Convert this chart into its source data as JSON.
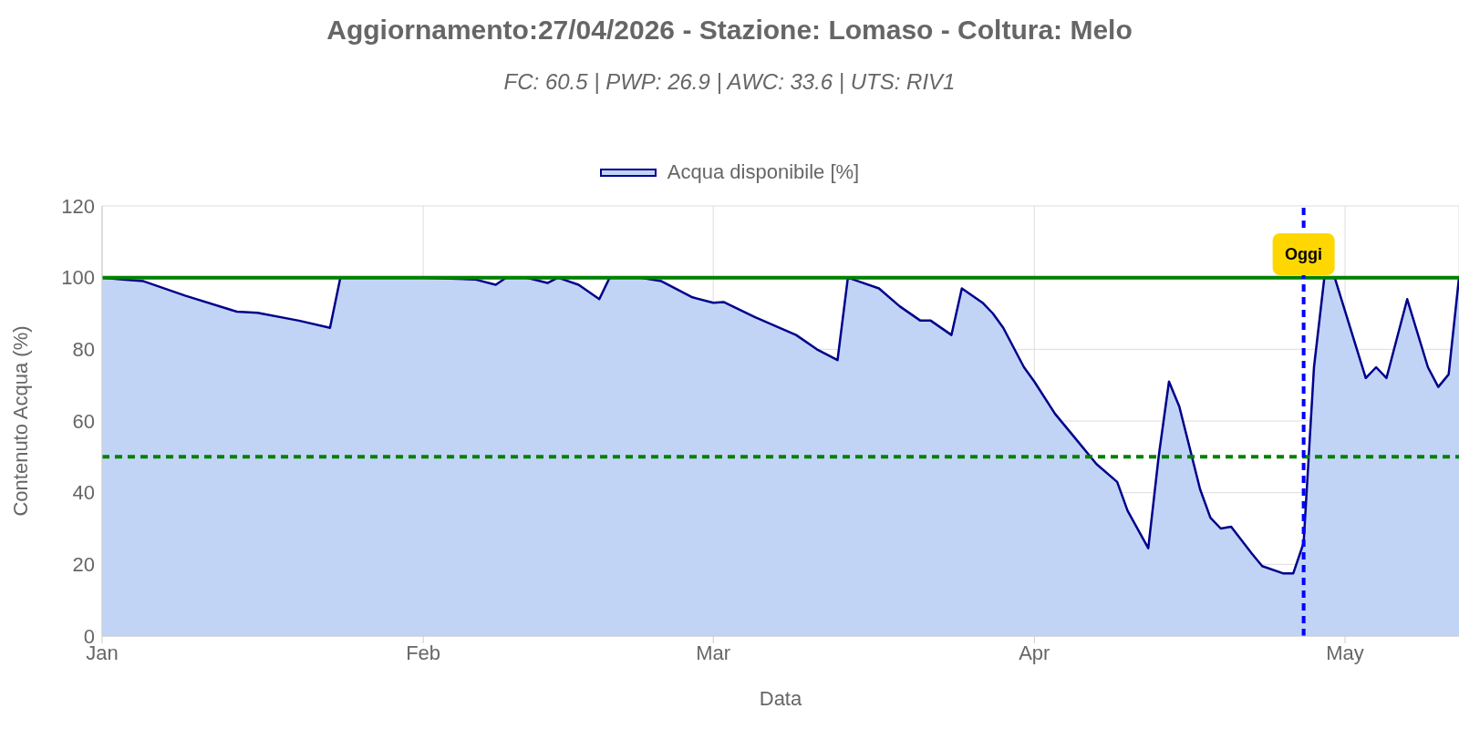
{
  "chart_data": {
    "type": "area",
    "title": "Aggiornamento:27/04/2026 - Stazione: Lomaso - Coltura: Melo",
    "subtitle": "FC: 60.5 | PWP: 26.9 | AWC: 33.6 | UTS: RIV1",
    "xlabel": "Data",
    "ylabel": "Contenuto Acqua (%)",
    "x": [
      "2026-01-01",
      "2026-01-03",
      "2026-01-05",
      "2026-01-09",
      "2026-01-14",
      "2026-01-16",
      "2026-01-20",
      "2026-01-23",
      "2026-01-24",
      "2026-02-01",
      "2026-02-06",
      "2026-02-08",
      "2026-02-09",
      "2026-02-11",
      "2026-02-13",
      "2026-02-14",
      "2026-02-16",
      "2026-02-18",
      "2026-02-19",
      "2026-02-22",
      "2026-02-24",
      "2026-02-27",
      "2026-03-01",
      "2026-03-02",
      "2026-03-05",
      "2026-03-09",
      "2026-03-11",
      "2026-03-13",
      "2026-03-14",
      "2026-03-15",
      "2026-03-17",
      "2026-03-19",
      "2026-03-21",
      "2026-03-22",
      "2026-03-24",
      "2026-03-25",
      "2026-03-27",
      "2026-03-28",
      "2026-03-29",
      "2026-03-31",
      "2026-04-01",
      "2026-04-03",
      "2026-04-05",
      "2026-04-07",
      "2026-04-09",
      "2026-04-10",
      "2026-04-12",
      "2026-04-13",
      "2026-04-14",
      "2026-04-15",
      "2026-04-17",
      "2026-04-18",
      "2026-04-19",
      "2026-04-20",
      "2026-04-22",
      "2026-04-23",
      "2026-04-25",
      "2026-04-26",
      "2026-04-27",
      "2026-04-28",
      "2026-04-29",
      "2026-04-30",
      "2026-05-03",
      "2026-05-04",
      "2026-05-05",
      "2026-05-07",
      "2026-05-09",
      "2026-05-10",
      "2026-05-11",
      "2026-05-12"
    ],
    "series": [
      {
        "name": "Acqua disponibile [%]",
        "color": "#00008b",
        "values": [
          100,
          99.5,
          99,
          95,
          90.5,
          90.2,
          88,
          86,
          100,
          100,
          99.5,
          98,
          100,
          100,
          98.5,
          100,
          98,
          94,
          100,
          100,
          99,
          94.5,
          93,
          93.2,
          89,
          84,
          80,
          77,
          100,
          99,
          97,
          92,
          88,
          88,
          84,
          97,
          93,
          90,
          86,
          75,
          71,
          62,
          55,
          48,
          43,
          35,
          24.5,
          50,
          71,
          64,
          41,
          33,
          30,
          30.5,
          23,
          19.5,
          17.5,
          17.5,
          26,
          75,
          100,
          100,
          72,
          75,
          72,
          94,
          75,
          69.5,
          73,
          100
        ]
      }
    ],
    "xlim": [
      "2026-01-01",
      "2026-05-12"
    ],
    "xticks": [
      {
        "value": "2026-01-01",
        "label": "Jan"
      },
      {
        "value": "2026-02-01",
        "label": "Feb"
      },
      {
        "value": "2026-03-01",
        "label": "Mar"
      },
      {
        "value": "2026-04-01",
        "label": "Apr"
      },
      {
        "value": "2026-05-01",
        "label": "May"
      }
    ],
    "ylim": [
      0,
      120
    ],
    "yticks": [
      0,
      20,
      40,
      60,
      80,
      100,
      120
    ],
    "grid": true,
    "legend": "top",
    "marker": "none",
    "ref_lines": [
      {
        "axis": "y",
        "value": 100,
        "color": "#008000",
        "line_style": "solid"
      },
      {
        "axis": "y",
        "value": 50,
        "color": "#008000",
        "line_style": "dashed"
      },
      {
        "axis": "x",
        "value": "2026-04-27",
        "label": "Oggi",
        "color": "#0000ff",
        "line_style": "dashed"
      }
    ]
  }
}
